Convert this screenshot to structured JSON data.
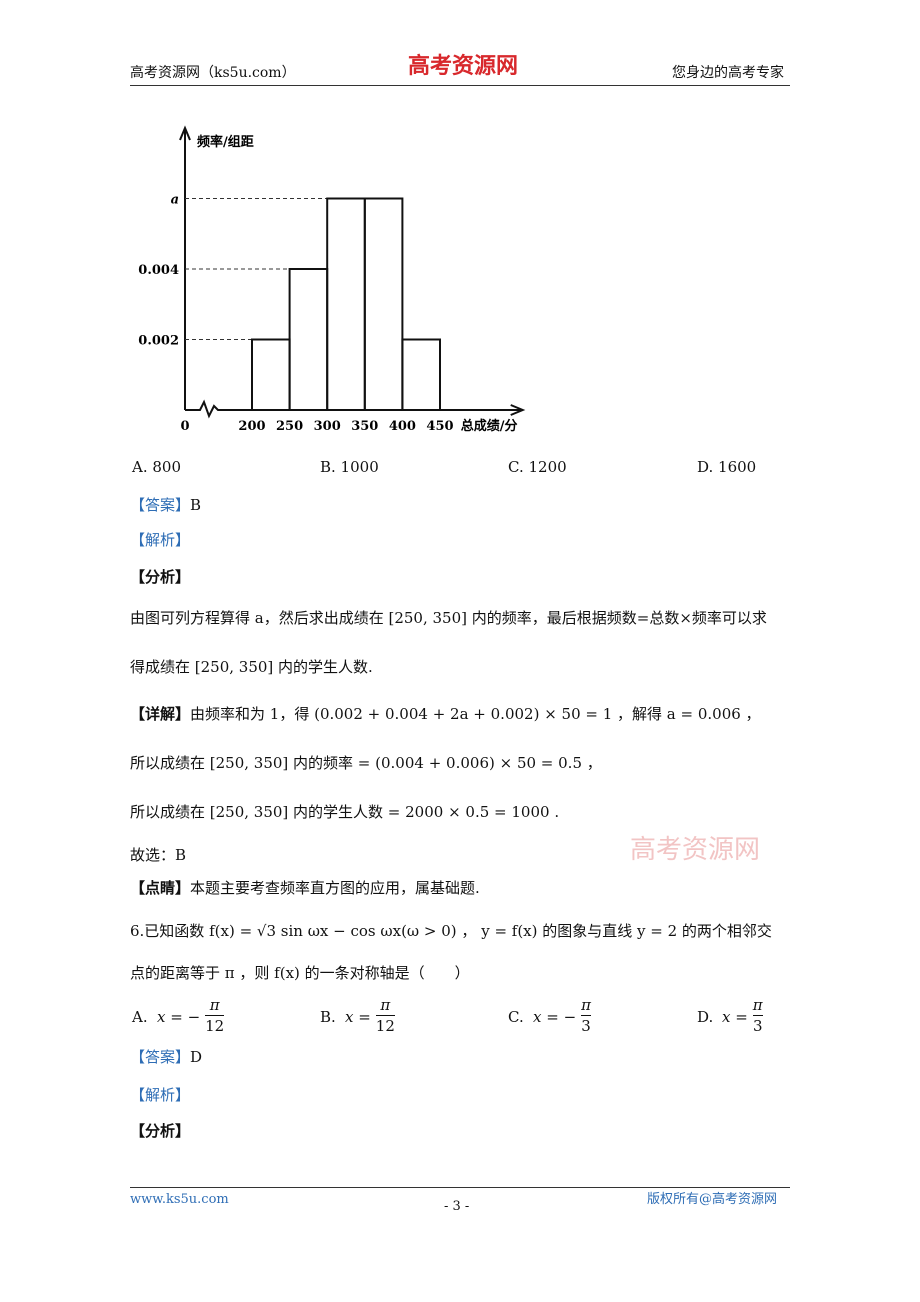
{
  "header": {
    "left": "高考资源网（ks5u.com）",
    "center": "高考资源网",
    "right": "您身边的高考专家"
  },
  "chart_data": {
    "type": "histogram",
    "y_label": "频率/组距",
    "x_label": "总成绩/分",
    "bins": [
      200,
      250,
      300,
      350,
      400,
      450
    ],
    "values": [
      0.002,
      0.004,
      0.006,
      0.006,
      0.002
    ],
    "xlim": [
      0,
      560
    ],
    "xticks": [
      0,
      200,
      250,
      300,
      350,
      400,
      450
    ],
    "ylim": [
      0,
      0.008
    ],
    "yticks": [
      0.002,
      0.004,
      {
        "value": 0.006,
        "label": "a"
      }
    ]
  },
  "q5_options": [
    "A. 800",
    "B. 1000",
    "C. 1200",
    "D. 1600"
  ],
  "q5_answer": {
    "tag": "【答案】",
    "value": "B"
  },
  "q5_jiexi": "【解析】",
  "q5_fenxi": "【分析】",
  "q5_analysis": [
    "由图可列方程算得 a，然后求出成绩在 [250, 350] 内的频率，最后根据频数=总数×频率可以求",
    "得成绩在 [250, 350] 内的学生人数."
  ],
  "q5_detail": {
    "tag": "【详解】",
    "lines": [
      "由频率和为 1，得 (0.002 + 0.004 + 2a + 0.002) × 50 = 1 ，解得 a = 0.006 ，",
      "所以成绩在 [250, 350] 内的频率 = (0.004 + 0.006) × 50 = 0.5 ，",
      "所以成绩在 [250, 350] 内的学生人数 = 2000 × 0.5 = 1000 ."
    ]
  },
  "q5_choice": "故选：B",
  "q5_comment": {
    "tag": "【点睛】",
    "text": "本题主要考查频率直方图的应用，属基础题."
  },
  "q6_lines": [
    "6.已知函数 f(x) = √3 sin ωx − cos ωx(ω > 0) ， y = f(x) 的图象与直线 y = 2 的两个相邻交",
    "点的距离等于 π ，则 f(x) 的一条对称轴是（　　）"
  ],
  "q6_options": [
    {
      "label": "A.",
      "lhs": "x = −",
      "num": "π",
      "den": "12"
    },
    {
      "label": "B.",
      "lhs": "x =",
      "num": "π",
      "den": "12"
    },
    {
      "label": "C.",
      "lhs": "x = −",
      "num": "π",
      "den": "3"
    },
    {
      "label": "D.",
      "lhs": "x =",
      "num": "π",
      "den": "3"
    }
  ],
  "q6_answer": {
    "tag": "【答案】",
    "value": "D"
  },
  "q6_jiexi": "【解析】",
  "q6_fenxi": "【分析】",
  "watermark": "高考资源网",
  "footer": {
    "left": "www.ks5u.com",
    "center": "- 3 -",
    "right": "版权所有@高考资源网"
  }
}
